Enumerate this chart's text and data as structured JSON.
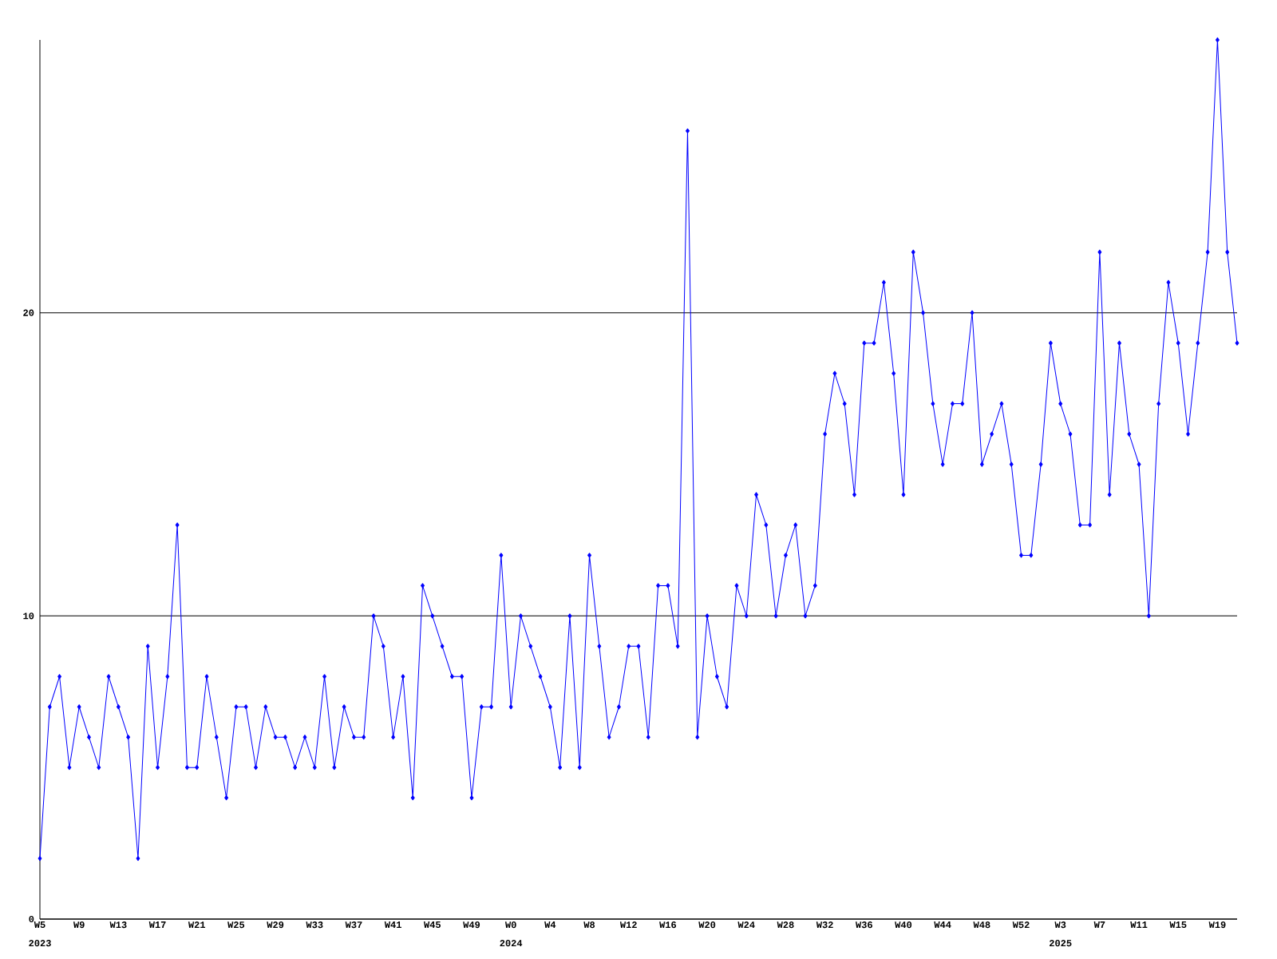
{
  "chart_data": {
    "type": "line",
    "categories": [
      "W5",
      null,
      null,
      null,
      "W9",
      null,
      null,
      null,
      "W13",
      null,
      null,
      null,
      "W17",
      null,
      null,
      null,
      "W21",
      null,
      null,
      null,
      "W25",
      null,
      null,
      null,
      "W29",
      null,
      null,
      null,
      "W33",
      null,
      null,
      null,
      "W37",
      null,
      null,
      null,
      "W41",
      null,
      null,
      null,
      "W45",
      null,
      null,
      null,
      "W49",
      null,
      null,
      null,
      "W0",
      null,
      null,
      null,
      "W4",
      null,
      null,
      null,
      "W8",
      null,
      null,
      null,
      "W12",
      null,
      null,
      null,
      "W16",
      null,
      null,
      null,
      "W20",
      null,
      null,
      null,
      "W24",
      null,
      null,
      null,
      "W28",
      null,
      null,
      null,
      "W32",
      null,
      null,
      null,
      "W36",
      null,
      null,
      null,
      "W40",
      null,
      null,
      null,
      "W44",
      null,
      null,
      null,
      "W48",
      null,
      null,
      null,
      "W52",
      null,
      null,
      null,
      "W3",
      null,
      null,
      null,
      "W7",
      null,
      null,
      null,
      "W11",
      null,
      null,
      null,
      "W15",
      null,
      null,
      null,
      "W19",
      null,
      null
    ],
    "values": [
      2,
      7,
      8,
      5,
      7,
      6,
      5,
      8,
      7,
      6,
      2,
      9,
      5,
      8,
      13,
      5,
      5,
      8,
      6,
      4,
      7,
      7,
      5,
      7,
      6,
      6,
      5,
      6,
      5,
      8,
      5,
      7,
      6,
      6,
      10,
      9,
      6,
      8,
      4,
      11,
      10,
      9,
      8,
      8,
      4,
      7,
      7,
      12,
      7,
      10,
      9,
      8,
      7,
      5,
      10,
      5,
      12,
      9,
      6,
      7,
      9,
      9,
      6,
      11,
      11,
      9,
      26,
      6,
      10,
      8,
      7,
      11,
      10,
      14,
      13,
      10,
      12,
      13,
      10,
      11,
      16,
      18,
      17,
      14,
      19,
      19,
      21,
      18,
      14,
      22,
      20,
      17,
      15,
      17,
      17,
      20,
      15,
      16,
      17,
      15,
      12,
      12,
      15,
      19,
      17,
      16,
      13,
      13,
      22,
      14,
      19,
      16,
      15,
      10,
      17,
      21,
      19,
      16,
      19,
      22,
      29,
      22,
      19
    ],
    "color": "#0000ff",
    "ylim": [
      0,
      29
    ],
    "yticks": [
      0,
      10,
      20
    ],
    "grid": "y",
    "marker": "diamond",
    "line_style": "solid",
    "annotations": [
      "2023",
      "2024",
      "2025"
    ]
  }
}
